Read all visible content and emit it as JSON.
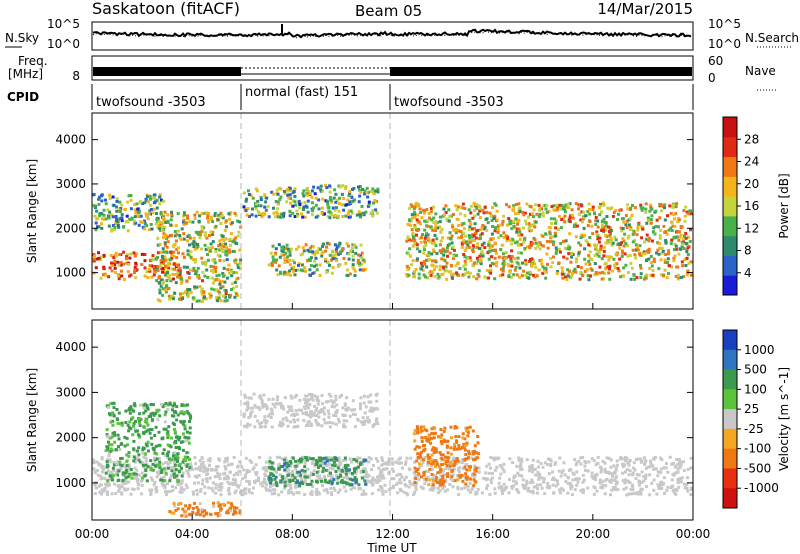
{
  "header": {
    "station": "Saskatoon (fitACF)",
    "beam": "Beam 05",
    "date": "14/Mar/2015"
  },
  "noise_panel": {
    "left_label": "N.Sky",
    "right_label": "N.Search",
    "ticks": [
      "10^5",
      "10^0"
    ],
    "right_ticks": [
      "10^5",
      "10^0"
    ]
  },
  "freq_panel": {
    "left_label_1": "Freq.",
    "left_label_2": "[MHz]",
    "left_ticks": [
      "8"
    ],
    "right_label": "Nave",
    "right_ticks": [
      "60",
      "0"
    ]
  },
  "cpid": {
    "label": "CPID",
    "segments": [
      {
        "name": "twofsound -3503",
        "start_hour": 0,
        "end_hour": 6
      },
      {
        "name": "normal (fast) 151",
        "start_hour": 6,
        "end_hour": 12
      },
      {
        "name": "twofsound -3503",
        "start_hour": 12,
        "end_hour": 24
      }
    ]
  },
  "chart_data": [
    {
      "type": "heatmap",
      "title": "",
      "quantity": "Power",
      "xlabel": "Time UT",
      "ylabel": "Slant Range [km]",
      "xlim_hours": [
        0,
        24
      ],
      "ylim_km": [
        180,
        4600
      ],
      "x_ticks": [
        "00:00",
        "04:00",
        "08:00",
        "12:00",
        "16:00",
        "20:00",
        "00:00"
      ],
      "y_ticks": [
        1000,
        2000,
        3000,
        4000
      ],
      "colorbar": {
        "label": "Power [dB]",
        "tick_labels": [
          "28",
          "24",
          "20",
          "16",
          "12",
          "8",
          "4"
        ],
        "colors": [
          "#1a1ad9",
          "#2a63c7",
          "#2e8b6e",
          "#49b04a",
          "#c4d43a",
          "#f5b41a",
          "#f07814",
          "#e02a14",
          "#c81010"
        ],
        "range_db": [
          0,
          32
        ]
      },
      "features": [
        {
          "desc": "1000-1500 km band",
          "start_hour": 0.0,
          "end_hour": 3.6,
          "range_km": [
            800,
            1500
          ],
          "value_db": 24
        },
        {
          "desc": "2000-2800 km patches",
          "start_hour": 0.0,
          "end_hour": 3.0,
          "range_km": [
            1900,
            2800
          ],
          "value_db": 12
        },
        {
          "desc": "descending arc",
          "start_hour": 2.5,
          "end_hour": 6.0,
          "range_km": [
            300,
            2400
          ],
          "value_db": 16
        },
        {
          "desc": "2500 km arc",
          "start_hour": 6.0,
          "end_hour": 11.5,
          "range_km": [
            2200,
            3000
          ],
          "value_db": 12
        },
        {
          "desc": "1200 km patches",
          "start_hour": 7.0,
          "end_hour": 11.0,
          "range_km": [
            900,
            1700
          ],
          "value_db": 14
        },
        {
          "desc": "evening bands",
          "start_hour": 12.5,
          "end_hour": 24.0,
          "range_km": [
            800,
            2600
          ],
          "value_db": 18
        }
      ]
    },
    {
      "type": "heatmap",
      "title": "",
      "quantity": "Velocity",
      "xlabel": "Time UT",
      "ylabel": "Slant Range [km]",
      "xlim_hours": [
        0,
        24
      ],
      "ylim_km": [
        180,
        4600
      ],
      "x_ticks": [
        "00:00",
        "04:00",
        "08:00",
        "12:00",
        "16:00",
        "20:00",
        "00:00"
      ],
      "y_ticks": [
        1000,
        2000,
        3000,
        4000
      ],
      "colorbar": {
        "label": "Velocity [m s^-1]",
        "tick_labels": [
          "1000",
          "500",
          "100",
          "25",
          "-25",
          "-100",
          "-500",
          "-1000"
        ],
        "colors": [
          "#1a3fbf",
          "#2e74c0",
          "#3c9a4e",
          "#5cc43c",
          "#c8c8c8",
          "#f5a623",
          "#f07814",
          "#e83010",
          "#d01010"
        ],
        "range_ms": [
          -1000,
          1000
        ]
      },
      "features": [
        {
          "desc": "ground scatter band",
          "start_hour": 0.0,
          "end_hour": 24.0,
          "range_km": [
            700,
            1600
          ],
          "value_ms": 0
        },
        {
          "desc": "2500 km ground scatter arc",
          "start_hour": 6.0,
          "end_hour": 11.5,
          "range_km": [
            2200,
            3000
          ],
          "value_ms": 0
        },
        {
          "desc": "green patches",
          "start_hour": 0.5,
          "end_hour": 4.0,
          "range_km": [
            1000,
            2800
          ],
          "value_ms": 150
        },
        {
          "desc": "blue-green patches",
          "start_hour": 7.0,
          "end_hour": 11.0,
          "range_km": [
            900,
            1600
          ],
          "value_ms": 400
        },
        {
          "desc": "orange patches",
          "start_hour": 12.8,
          "end_hour": 15.5,
          "range_km": [
            900,
            2300
          ],
          "value_ms": -200
        },
        {
          "desc": "near range orange",
          "start_hour": 3.0,
          "end_hour": 6.0,
          "range_km": [
            200,
            600
          ],
          "value_ms": -150
        }
      ]
    }
  ]
}
